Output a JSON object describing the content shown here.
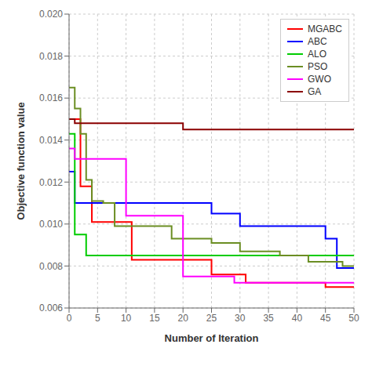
{
  "chart_data": {
    "type": "line",
    "xlabel": "Number of Iteration",
    "ylabel": "Objective function value",
    "x": [
      0,
      1,
      2,
      3,
      4,
      5,
      6,
      7,
      8,
      9,
      10,
      11,
      12,
      13,
      14,
      15,
      16,
      17,
      18,
      19,
      20,
      21,
      22,
      23,
      24,
      25,
      26,
      27,
      28,
      29,
      30,
      31,
      32,
      33,
      34,
      35,
      36,
      37,
      38,
      39,
      40,
      41,
      42,
      43,
      44,
      45,
      46,
      47,
      48,
      49,
      50
    ],
    "xlim": [
      0,
      50
    ],
    "xticks": [
      0,
      5,
      10,
      15,
      20,
      25,
      30,
      35,
      40,
      45,
      50
    ],
    "ylim": [
      0.006,
      0.02
    ],
    "yticks": [
      0.006,
      0.008,
      {
        "value": 0.01,
        "label": "0.010"
      },
      0.012,
      0.014,
      0.016,
      0.018,
      {
        "value": 0.02,
        "label": "0.020"
      }
    ],
    "grid": true,
    "legend": "upper right",
    "line_style": "steps",
    "series": [
      {
        "name": "MGABC",
        "color": "#ff0000",
        "values": [
          0.015,
          0.015,
          0.0118,
          0.0118,
          0.0101,
          0.0101,
          0.0101,
          0.0101,
          0.0101,
          0.0101,
          0.0101,
          0.0083,
          0.0083,
          0.0083,
          0.0083,
          0.0083,
          0.0083,
          0.0083,
          0.0083,
          0.0083,
          0.0083,
          0.0083,
          0.0083,
          0.0083,
          0.0083,
          0.0076,
          0.0076,
          0.0076,
          0.0076,
          0.0076,
          0.0076,
          0.0072,
          0.0072,
          0.0072,
          0.0072,
          0.0072,
          0.0072,
          0.0072,
          0.0072,
          0.0072,
          0.0072,
          0.0072,
          0.0072,
          0.0072,
          0.0072,
          0.007,
          0.007,
          0.007,
          0.007,
          0.007,
          0.007
        ]
      },
      {
        "name": "ABC",
        "color": "#0000ff",
        "values": [
          0.0125,
          0.011,
          0.011,
          0.011,
          0.011,
          0.011,
          0.011,
          0.011,
          0.011,
          0.011,
          0.011,
          0.011,
          0.011,
          0.011,
          0.011,
          0.011,
          0.011,
          0.011,
          0.011,
          0.011,
          0.011,
          0.011,
          0.011,
          0.011,
          0.011,
          0.0105,
          0.0105,
          0.0105,
          0.0105,
          0.0105,
          0.0099,
          0.0099,
          0.0099,
          0.0099,
          0.0099,
          0.0099,
          0.0099,
          0.0099,
          0.0099,
          0.0099,
          0.0099,
          0.0099,
          0.0099,
          0.0099,
          0.0099,
          0.0093,
          0.0093,
          0.0079,
          0.0079,
          0.0079,
          0.0079
        ]
      },
      {
        "name": "ALO",
        "color": "#00cc00",
        "values": [
          0.0143,
          0.0095,
          0.0095,
          0.0085,
          0.0085,
          0.0085,
          0.0085,
          0.0085,
          0.0085,
          0.0085,
          0.0085,
          0.0085,
          0.0085,
          0.0085,
          0.0085,
          0.0085,
          0.0085,
          0.0085,
          0.0085,
          0.0085,
          0.0085,
          0.0085,
          0.0085,
          0.0085,
          0.0085,
          0.0085,
          0.0085,
          0.0085,
          0.0085,
          0.0085,
          0.0085,
          0.0085,
          0.0085,
          0.0085,
          0.0085,
          0.0085,
          0.0085,
          0.0085,
          0.0085,
          0.0085,
          0.0085,
          0.0085,
          0.0085,
          0.0085,
          0.0085,
          0.0085,
          0.0085,
          0.0085,
          0.0085,
          0.0085,
          0.0085
        ]
      },
      {
        "name": "PSO",
        "color": "#6b8e23",
        "values": [
          0.0165,
          0.0155,
          0.0143,
          0.0121,
          0.0111,
          0.0111,
          0.011,
          0.011,
          0.0099,
          0.0099,
          0.0099,
          0.0099,
          0.0099,
          0.0099,
          0.0099,
          0.0099,
          0.0099,
          0.0099,
          0.0093,
          0.0093,
          0.0093,
          0.0093,
          0.0093,
          0.0093,
          0.0093,
          0.0091,
          0.0091,
          0.0091,
          0.0091,
          0.0091,
          0.0087,
          0.0087,
          0.0087,
          0.0087,
          0.0087,
          0.0087,
          0.0087,
          0.0085,
          0.0085,
          0.0085,
          0.0085,
          0.0085,
          0.0082,
          0.0082,
          0.0082,
          0.0082,
          0.0082,
          0.0082,
          0.008,
          0.008,
          0.008
        ]
      },
      {
        "name": "GWO",
        "color": "#ff00ff",
        "values": [
          0.0136,
          0.0131,
          0.0131,
          0.0131,
          0.0131,
          0.0131,
          0.0131,
          0.0131,
          0.0131,
          0.0131,
          0.0104,
          0.0104,
          0.0104,
          0.0104,
          0.0104,
          0.0104,
          0.0104,
          0.0104,
          0.0104,
          0.0104,
          0.0075,
          0.0075,
          0.0075,
          0.0075,
          0.0075,
          0.0075,
          0.0075,
          0.0075,
          0.0075,
          0.0072,
          0.0072,
          0.0072,
          0.0072,
          0.0072,
          0.0072,
          0.0072,
          0.0072,
          0.0072,
          0.0072,
          0.0072,
          0.0072,
          0.0072,
          0.0072,
          0.0072,
          0.0072,
          0.0072,
          0.0072,
          0.0072,
          0.0072,
          0.0072,
          0.0072
        ]
      },
      {
        "name": "GA",
        "color": "#8b0000",
        "values": [
          0.015,
          0.0148,
          0.0148,
          0.0148,
          0.0148,
          0.0148,
          0.0148,
          0.0148,
          0.0148,
          0.0148,
          0.0148,
          0.0148,
          0.0148,
          0.0148,
          0.0148,
          0.0148,
          0.0148,
          0.0148,
          0.0148,
          0.0148,
          0.0145,
          0.0145,
          0.0145,
          0.0145,
          0.0145,
          0.0145,
          0.0145,
          0.0145,
          0.0145,
          0.0145,
          0.0145,
          0.0145,
          0.0145,
          0.0145,
          0.0145,
          0.0145,
          0.0145,
          0.0145,
          0.0145,
          0.0145,
          0.0145,
          0.0145,
          0.0145,
          0.0145,
          0.0145,
          0.0145,
          0.0145,
          0.0145,
          0.0145,
          0.0145,
          0.0145
        ]
      }
    ]
  }
}
